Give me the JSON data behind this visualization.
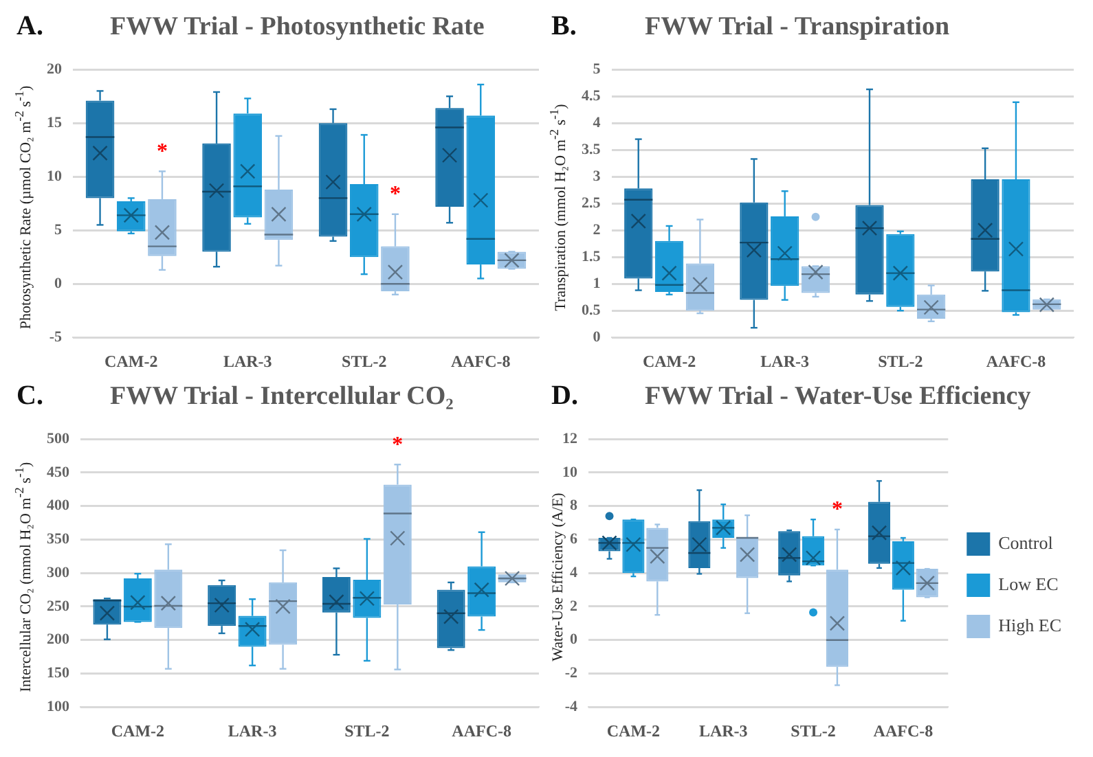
{
  "chart_data": [
    {
      "type": "box",
      "title": "FWW Trial - Photosynthetic Rate",
      "ylabel": "Photosynthetic Rate (µmol CO₂ m$^{-2}$ s$^{-1}$)",
      "annotations": [
        "A.",
        "*",
        "*"
      ],
      "categories": [
        "CAM-2",
        "LAR-3",
        "STL-2",
        "AAFC-8"
      ],
      "ylim": [
        -5,
        20
      ],
      "yticks": [
        -5,
        0,
        5,
        10,
        15,
        20
      ],
      "grid": "y",
      "legend": false,
      "series": [
        {
          "color": "#1c75aa",
          "boxes": [
            {
              "low": 5.5,
              "q1": 8,
              "median": 13.7,
              "q3": 17.1,
              "high": 18,
              "mean": 12.2
            },
            {
              "low": 1.6,
              "q1": 3,
              "median": 8.6,
              "q3": 13.1,
              "high": 17.9,
              "mean": 8.7
            },
            {
              "low": 4,
              "q1": 4.4,
              "median": 8,
              "q3": 15,
              "high": 16.3,
              "mean": 9.5
            },
            {
              "low": 5.7,
              "q1": 7.2,
              "median": 14.6,
              "q3": 16.4,
              "high": 17.5,
              "mean": 12
            }
          ]
        },
        {
          "color": "#1b9ad6",
          "boxes": [
            {
              "low": 4.7,
              "q1": 4.9,
              "median": 6.4,
              "q3": 7.7,
              "high": 8,
              "mean": 6.4
            },
            {
              "low": 5.6,
              "q1": 6.2,
              "median": 9.1,
              "q3": 15.9,
              "high": 17.3,
              "mean": 10.5
            },
            {
              "low": 0.9,
              "q1": 2.5,
              "median": 6.5,
              "q3": 9.3,
              "high": 13.9,
              "mean": 6.5
            },
            {
              "low": 0.5,
              "q1": 1.8,
              "median": 4.2,
              "q3": 15.7,
              "high": 18.6,
              "mean": 7.8
            }
          ]
        },
        {
          "color": "#9fc3e5",
          "boxes": [
            {
              "low": 1.3,
              "q1": 2.6,
              "median": 3.5,
              "q3": 7.9,
              "high": 10.5,
              "mean": 4.8
            },
            {
              "low": 1.7,
              "q1": 4.1,
              "median": 4.6,
              "q3": 8.8,
              "high": 13.8,
              "mean": 6.5
            },
            {
              "low": -1,
              "q1": -0.7,
              "median": 0,
              "q3": 3.5,
              "high": 6.5,
              "mean": 1.1
            },
            {
              "low": 1.4,
              "q1": 1.4,
              "median": 2.2,
              "q3": 3,
              "high": 3,
              "mean": 2.2
            }
          ]
        }
      ]
    },
    {
      "type": "box",
      "title": "FWW Trial - Transpiration",
      "ylabel": "Transpiration (mmol H₂O m$^{-2}$ s$^{-1}$)",
      "annotations": [
        "B."
      ],
      "categories": [
        "CAM-2",
        "LAR-3",
        "STL-2",
        "AAFC-8"
      ],
      "ylim": [
        0,
        5
      ],
      "yticks": [
        0,
        0.5,
        1,
        1.5,
        2,
        2.5,
        3,
        3.5,
        4,
        4.5,
        5
      ],
      "grid": "y",
      "legend": false,
      "series": [
        {
          "color": "#1c75aa",
          "boxes": [
            {
              "low": 0.88,
              "q1": 1.1,
              "median": 2.57,
              "q3": 2.78,
              "high": 3.7,
              "mean": 2.17
            },
            {
              "low": 0.18,
              "q1": 0.7,
              "median": 1.77,
              "q3": 2.52,
              "high": 3.33,
              "mean": 1.63
            },
            {
              "low": 0.68,
              "q1": 0.8,
              "median": 2.04,
              "q3": 2.47,
              "high": 4.63,
              "mean": 2.04
            },
            {
              "low": 0.87,
              "q1": 1.23,
              "median": 1.84,
              "q3": 2.95,
              "high": 3.53,
              "mean": 2
            }
          ]
        },
        {
          "color": "#1b9ad6",
          "boxes": [
            {
              "low": 0.8,
              "q1": 0.85,
              "median": 0.98,
              "q3": 1.8,
              "high": 2.08,
              "mean": 1.2
            },
            {
              "low": 0.7,
              "q1": 0.96,
              "median": 1.46,
              "q3": 2.26,
              "high": 2.73,
              "mean": 1.57
            },
            {
              "low": 0.5,
              "q1": 0.57,
              "median": 1.2,
              "q3": 1.93,
              "high": 1.98,
              "mean": 1.2
            },
            {
              "low": 0.42,
              "q1": 0.47,
              "median": 0.88,
              "q3": 2.95,
              "high": 4.39,
              "mean": 1.65
            }
          ]
        },
        {
          "color": "#9fc3e5",
          "boxes": [
            {
              "low": 0.45,
              "q1": 0.5,
              "median": 0.83,
              "q3": 1.38,
              "high": 2.2,
              "mean": 0.99
            },
            {
              "low": 0.76,
              "q1": 0.83,
              "median": 1.18,
              "q3": 1.33,
              "high": 1.33,
              "mean": 1.22,
              "outliers": [
                2.25
              ]
            },
            {
              "low": 0.3,
              "q1": 0.35,
              "median": 0.52,
              "q3": 0.8,
              "high": 0.97,
              "mean": 0.56
            },
            {
              "low": 0.52,
              "q1": 0.52,
              "median": 0.62,
              "q3": 0.71,
              "high": 0.71,
              "mean": 0.61
            }
          ]
        }
      ]
    },
    {
      "type": "box",
      "title": "FWW Trial - Intercellular CO₂",
      "ylabel": "Intercellular CO₂ (mmol H₂O m$^{-2}$ s$^{-1}$)",
      "annotations": [
        "C.",
        "*"
      ],
      "categories": [
        "CAM-2",
        "LAR-3",
        "STL-2",
        "AAFC-8"
      ],
      "ylim": [
        100,
        500
      ],
      "yticks": [
        100,
        150,
        200,
        250,
        300,
        350,
        400,
        450,
        500
      ],
      "grid": "y",
      "legend": false,
      "series": [
        {
          "color": "#1c75aa",
          "boxes": [
            {
              "low": 201,
              "q1": 223,
              "median": 259,
              "q3": 261,
              "high": 262,
              "mean": 240
            },
            {
              "low": 210,
              "q1": 221,
              "median": 255,
              "q3": 282,
              "high": 289,
              "mean": 252
            },
            {
              "low": 178,
              "q1": 241,
              "median": 254,
              "q3": 294,
              "high": 307,
              "mean": 257
            },
            {
              "low": 185,
              "q1": 188,
              "median": 240,
              "q3": 275,
              "high": 286,
              "mean": 235
            }
          ]
        },
        {
          "color": "#1b9ad6",
          "boxes": [
            {
              "low": 227,
              "q1": 227,
              "median": 250,
              "q3": 292,
              "high": 299,
              "mean": 256
            },
            {
              "low": 162,
              "q1": 190,
              "median": 221,
              "q3": 236,
              "high": 261,
              "mean": 216
            },
            {
              "low": 169,
              "q1": 233,
              "median": 263,
              "q3": 290,
              "high": 351,
              "mean": 262
            },
            {
              "low": 215,
              "q1": 235,
              "median": 270,
              "q3": 310,
              "high": 361,
              "mean": 275
            }
          ]
        },
        {
          "color": "#9fc3e5",
          "boxes": [
            {
              "low": 157,
              "q1": 218,
              "median": 251,
              "q3": 305,
              "high": 343,
              "mean": 255
            },
            {
              "low": 157,
              "q1": 193,
              "median": 258,
              "q3": 286,
              "high": 334,
              "mean": 250
            },
            {
              "low": 156,
              "q1": 253,
              "median": 389,
              "q3": 432,
              "high": 462,
              "mean": 352
            },
            {
              "low": 286,
              "q1": 286,
              "median": 292,
              "q3": 298,
              "high": 298,
              "mean": 292
            }
          ]
        }
      ]
    },
    {
      "type": "box",
      "title": "FWW Trial - Water-Use Efficiency",
      "ylabel": "Water-Use Efficiency (A/E)",
      "annotations": [
        "D.",
        "*"
      ],
      "categories": [
        "CAM-2",
        "LAR-3",
        "STL-2",
        "AAFC-8"
      ],
      "ylim": [
        -4,
        12
      ],
      "yticks": [
        -4,
        -2,
        0,
        2,
        4,
        6,
        8,
        10,
        12
      ],
      "grid": "y",
      "legend": "right",
      "series": [
        {
          "name": "Control",
          "color": "#1c75aa",
          "boxes": [
            {
              "low": 4.85,
              "q1": 5.3,
              "median": 5.8,
              "q3": 6.1,
              "high": 6.1,
              "mean": 5.8,
              "outliers": [
                7.4
              ]
            },
            {
              "low": 3.95,
              "q1": 4.3,
              "median": 5.2,
              "q3": 7.1,
              "high": 8.95,
              "mean": 5.7
            },
            {
              "low": 3.5,
              "q1": 3.85,
              "median": 4.9,
              "q3": 6.5,
              "high": 6.55,
              "mean": 5.1
            },
            {
              "low": 4.3,
              "q1": 4.55,
              "median": 6.2,
              "q3": 8.25,
              "high": 9.5,
              "mean": 6.4
            }
          ]
        },
        {
          "name": "Low EC",
          "color": "#1b9ad6",
          "boxes": [
            {
              "low": 3.8,
              "q1": 4,
              "median": 5.8,
              "q3": 7.2,
              "high": 7.2,
              "mean": 5.7
            },
            {
              "low": 5.5,
              "q1": 6.1,
              "median": 6.7,
              "q3": 7.2,
              "high": 8.1,
              "mean": 6.7
            },
            {
              "low": 4.45,
              "q1": 4.45,
              "median": 4.7,
              "q3": 6.2,
              "high": 7.2,
              "mean": 4.9,
              "outliers": [
                1.65
              ]
            },
            {
              "low": 1.15,
              "q1": 3,
              "median": 4.6,
              "q3": 5.9,
              "high": 6.1,
              "mean": 4.3
            }
          ]
        },
        {
          "name": "High EC",
          "color": "#9fc3e5",
          "boxes": [
            {
              "low": 1.5,
              "q1": 3.5,
              "median": 5.5,
              "q3": 6.7,
              "high": 6.9,
              "mean": 5
            },
            {
              "low": 1.6,
              "q1": 3.7,
              "median": 6.1,
              "q3": 6.1,
              "high": 7.45,
              "mean": 5.1
            },
            {
              "low": -2.7,
              "q1": -1.6,
              "median": 0,
              "q3": 4.2,
              "high": 6.6,
              "mean": 1
            },
            {
              "low": 2.55,
              "q1": 2.55,
              "median": 3.4,
              "q3": 4.25,
              "high": 4.25,
              "mean": 3.4
            }
          ]
        }
      ]
    }
  ]
}
